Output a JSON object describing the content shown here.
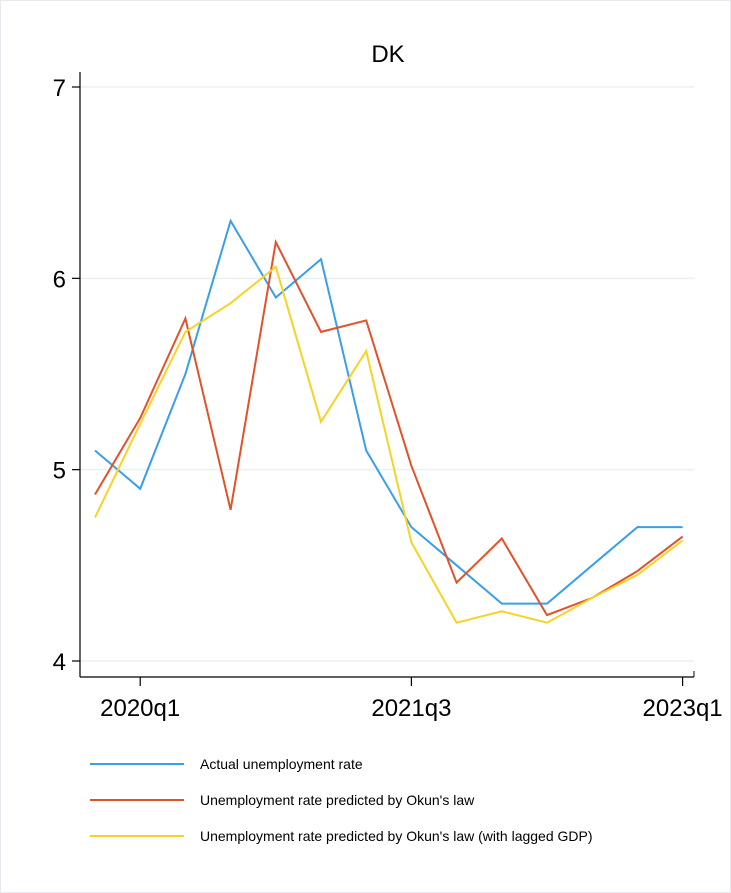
{
  "chart_data": {
    "type": "line",
    "title": "DK",
    "xlabel": "",
    "ylabel": "",
    "ylim": [
      4,
      7
    ],
    "yticks": [
      4,
      5,
      6,
      7
    ],
    "x": [
      "2019q4",
      "2020q1",
      "2020q2",
      "2020q3",
      "2020q4",
      "2021q1",
      "2021q2",
      "2021q3",
      "2021q4",
      "2022q1",
      "2022q2",
      "2022q3",
      "2022q4",
      "2023q1"
    ],
    "xticks": [
      "2020q1",
      "2021q3",
      "2023q1"
    ],
    "grid": "horizontal",
    "legend_position": "bottom",
    "series": [
      {
        "name": "Actual unemployment rate",
        "color": "#3a9ee8",
        "values": [
          5.1,
          4.9,
          5.5,
          6.3,
          5.9,
          6.1,
          5.1,
          4.7,
          4.5,
          4.3,
          4.3,
          4.5,
          4.7,
          4.7
        ]
      },
      {
        "name": "Unemployment rate predicted by Okun's law",
        "color": "#e0532a",
        "values": [
          4.87,
          5.27,
          5.79,
          4.79,
          6.19,
          5.72,
          5.78,
          5.02,
          4.41,
          4.64,
          4.24,
          4.33,
          4.47,
          4.65
        ]
      },
      {
        "name": "Unemployment rate predicted by Okun's law (with lagged GDP)",
        "color": "#f5d327",
        "values": [
          4.75,
          5.24,
          5.72,
          5.87,
          6.06,
          5.25,
          5.62,
          4.62,
          4.2,
          4.26,
          4.2,
          4.33,
          4.45,
          4.63
        ]
      }
    ]
  }
}
